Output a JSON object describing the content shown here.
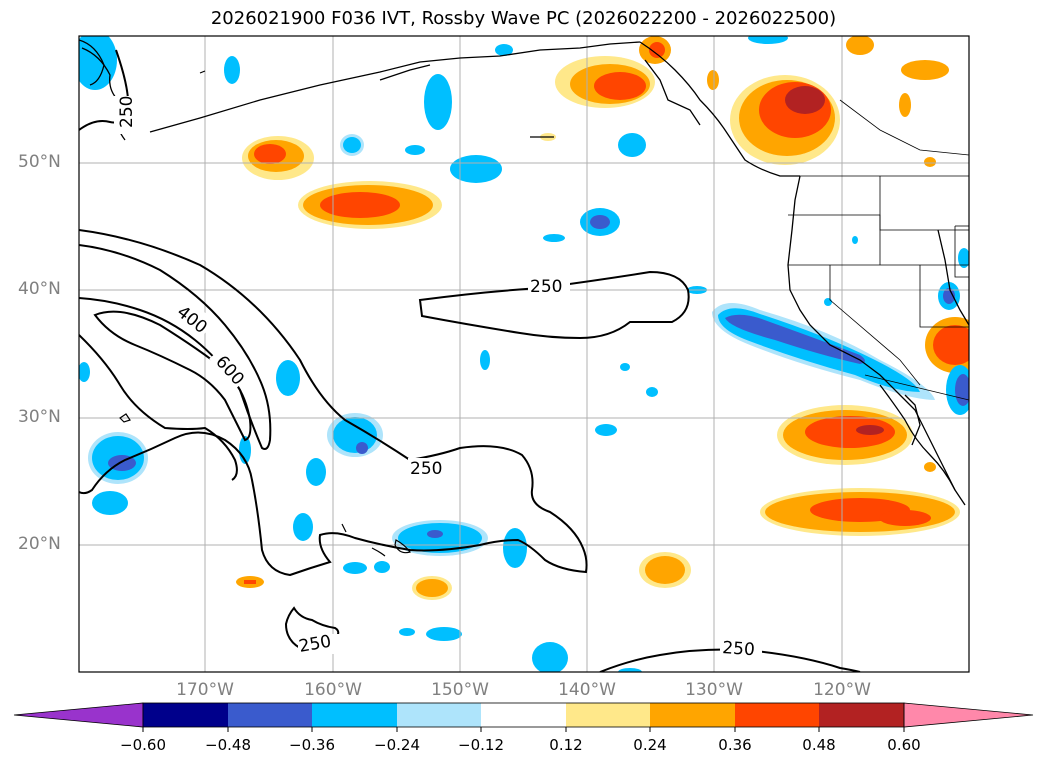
{
  "title": "2026021900 F036 IVT, Rossby Wave PC (2026022200 - 2026022500)",
  "lat_labels": [
    "50°N",
    "40°N",
    "30°N",
    "20°N"
  ],
  "lon_labels": [
    "170°W",
    "160°W",
    "150°W",
    "140°W",
    "130°W",
    "120°W"
  ],
  "contour_labels": [
    "250",
    "400",
    "600",
    "250",
    "250",
    "250",
    "250"
  ],
  "colorbar": {
    "ticks": [
      "−0.60",
      "−0.48",
      "−0.36",
      "−0.24",
      "−0.12",
      "0.12",
      "0.24",
      "0.36",
      "0.48",
      "0.60"
    ],
    "colors": [
      "#9933cc",
      "#00008b",
      "#3a5bcd",
      "#00bfff",
      "#aee4fb",
      "#ffffff",
      "#ffe88a",
      "#ffa500",
      "#ff4500",
      "#b22222",
      "#ff88aa"
    ]
  },
  "colors": {
    "strong_negative": "#3a5bcd",
    "negative": "#00bfff",
    "weak_negative": "#aee4fb",
    "weak_positive": "#ffe88a",
    "positive": "#ffa500",
    "strong_positive": "#ff4500",
    "very_strong_positive": "#b22222"
  }
}
